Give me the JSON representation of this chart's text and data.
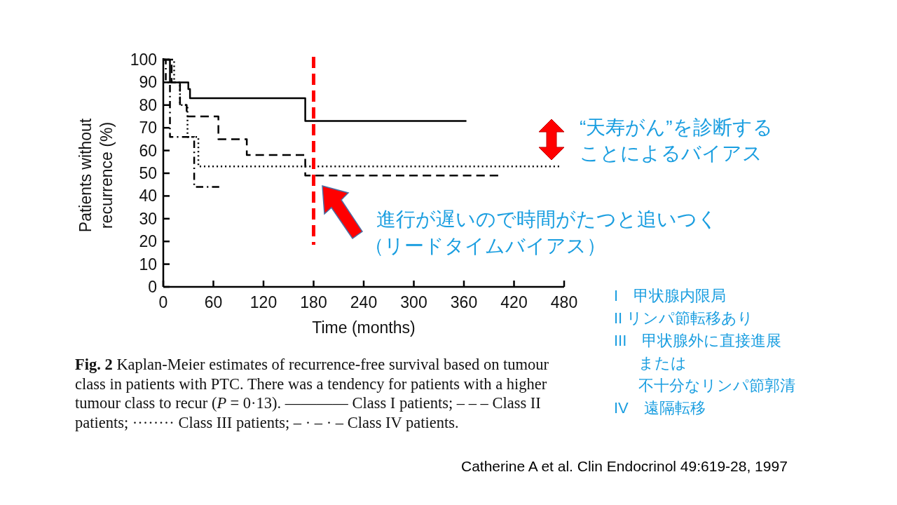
{
  "chart_data": {
    "type": "step",
    "xlabel": "Time (months)",
    "ylabel": "Patients without recurrence (%)",
    "xlim": [
      0,
      480
    ],
    "xticks": [
      0,
      60,
      120,
      180,
      240,
      300,
      360,
      420,
      480
    ],
    "ylim": [
      0,
      100
    ],
    "yticks": [
      0,
      10,
      20,
      30,
      40,
      50,
      60,
      70,
      80,
      90,
      100
    ],
    "series": [
      {
        "color": "#000000",
        "line_style": "solid",
        "x": [
          0,
          8,
          30,
          32,
          170,
          363
        ],
        "values": [
          100,
          90,
          87,
          83,
          73,
          73
        ]
      },
      {
        "color": "#000000",
        "line_style": "dashed",
        "x": [
          0,
          10,
          20,
          28,
          66,
          100,
          170,
          401
        ],
        "values": [
          100,
          90,
          80,
          75,
          65,
          58,
          49,
          49
        ]
      },
      {
        "color": "#000000",
        "line_style": "dotted",
        "x": [
          0,
          13,
          20,
          29,
          42,
          474
        ],
        "values": [
          100,
          90,
          80,
          66,
          53,
          53
        ]
      },
      {
        "color": "#000000",
        "line_style": "dashdot",
        "x": [
          0,
          3,
          8,
          37,
          67
        ],
        "values": [
          100,
          90,
          66,
          44,
          44
        ]
      }
    ],
    "ref_lines": [
      {
        "axis": "x",
        "value": 180,
        "color": "#ff0000",
        "line_style": "dashed"
      }
    ],
    "annotations": [
      "“天寿がん”を診断する",
      "ことによるバイアス",
      "進行が遅いので時間がたつと追いつく",
      "（リードタイムバイアス）",
      "I　甲状腺内限局",
      "II リンパ節転移あり",
      "III　甲状腺外に直接進展",
      "または",
      "不十分なリンパ節郭清",
      "IV　遠隔転移",
      "**Fig. 2** Kaplan-Meier estimates of recurrence-free survival based on tumour class in patients with PTC. There was a tendency for patients with a higher tumour class to recur (*P* = 0·13). ———— Class I patients; – – – Class II patients; ········ Class III patients; – · – · – Class IV patients.",
      "Catherine A et al. Clin Endocrinol 49:619-28, 1997"
    ]
  }
}
